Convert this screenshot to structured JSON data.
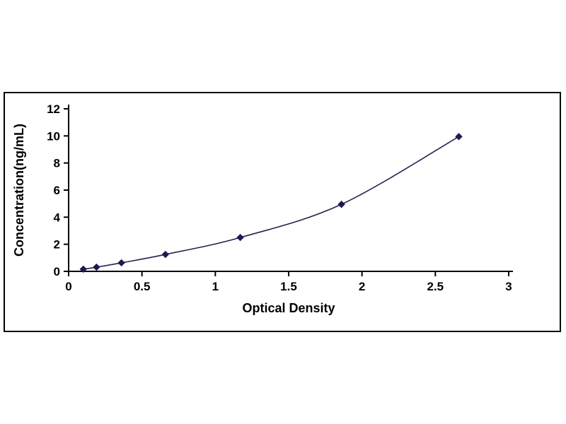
{
  "chart_data": {
    "type": "line",
    "title": "",
    "xlabel": "Optical Density",
    "ylabel": "Concentration(ng/mL)",
    "xlim": [
      0,
      3
    ],
    "ylim": [
      0,
      12
    ],
    "xticks": [
      0,
      0.5,
      1,
      1.5,
      2,
      2.5,
      3
    ],
    "xtick_labels": [
      "0",
      "0.5",
      "1",
      "1.5",
      "2",
      "2.5",
      "3"
    ],
    "yticks": [
      0,
      2,
      4,
      6,
      8,
      10,
      12
    ],
    "ytick_labels": [
      "0",
      "2",
      "4",
      "6",
      "8",
      "10",
      "12"
    ],
    "grid": false,
    "legend": "none",
    "marker": "diamond",
    "line_color": "#26224f",
    "marker_color": "#1c1a52",
    "series": [
      {
        "name": "standard-curve",
        "x": [
          0.1,
          0.19,
          0.36,
          0.66,
          1.17,
          1.86,
          2.66
        ],
        "y": [
          0.16,
          0.31,
          0.63,
          1.25,
          2.5,
          4.95,
          9.95
        ]
      }
    ]
  }
}
